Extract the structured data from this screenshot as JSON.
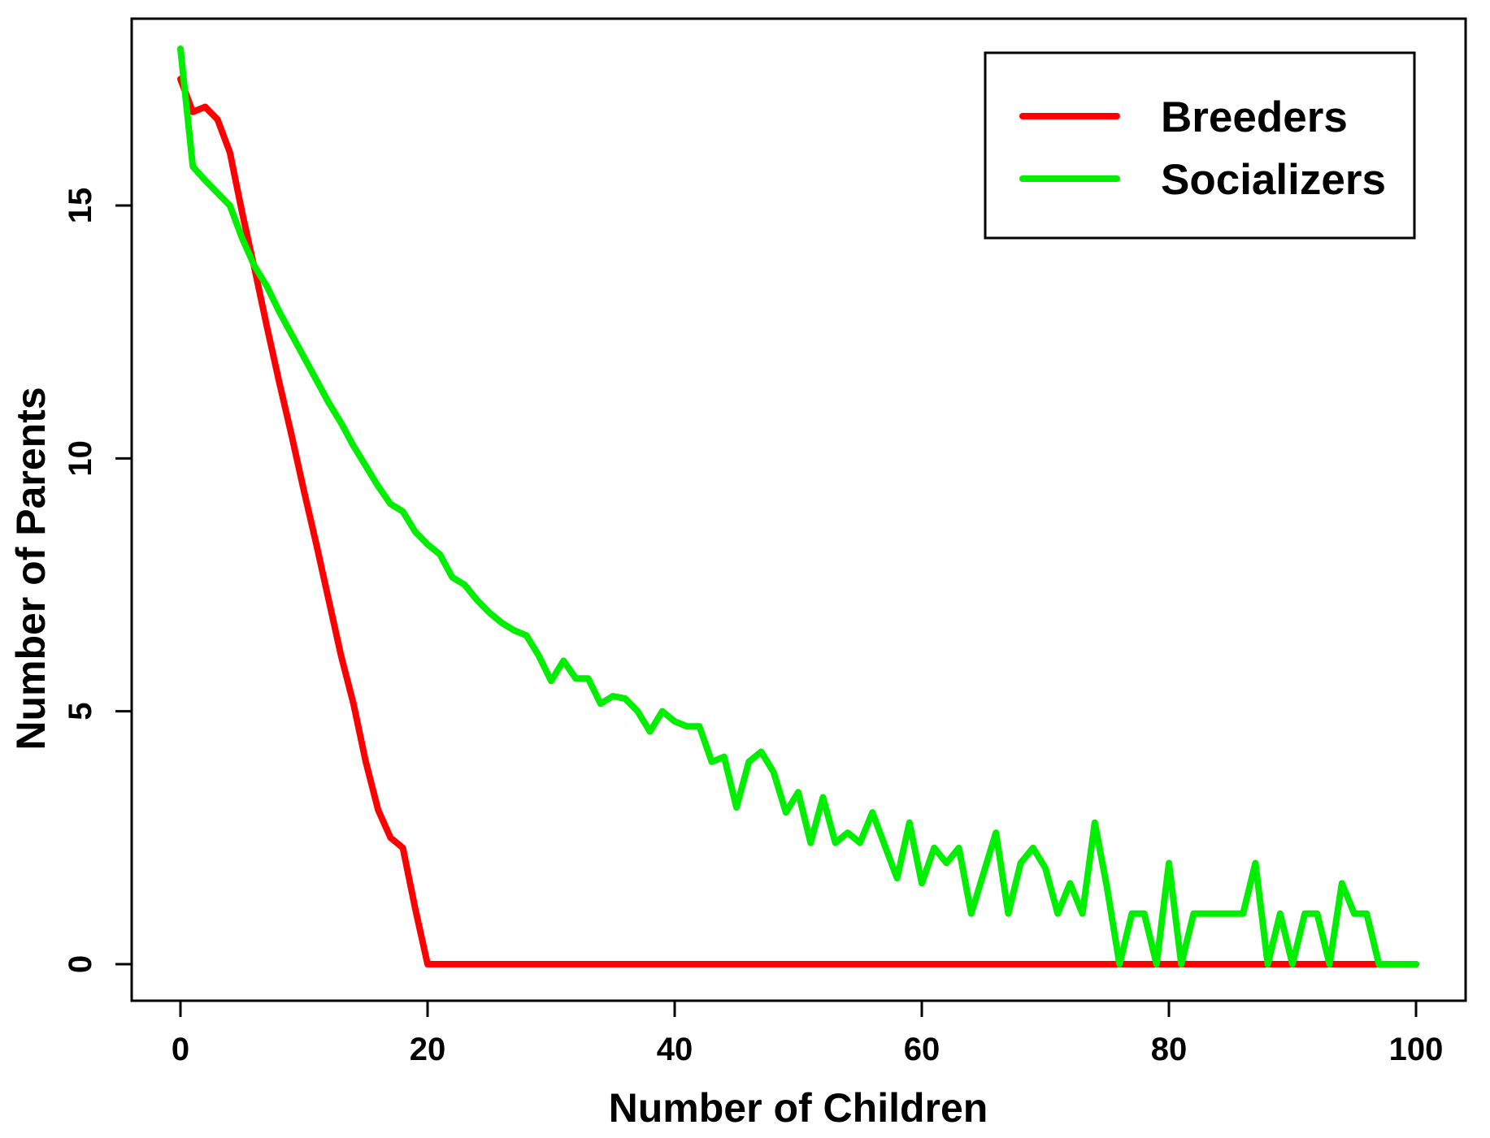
{
  "chart_data": {
    "type": "line",
    "title": "",
    "xlabel": "Number of Children",
    "ylabel": "Number of Parents",
    "x_ticks": [
      0,
      20,
      40,
      60,
      80,
      100
    ],
    "y_ticks": [
      0,
      5,
      10,
      15
    ],
    "xlim": [
      -4,
      104
    ],
    "ylim": [
      -0.75,
      18.7
    ],
    "grid": false,
    "legend": {
      "position": "top-right",
      "entries": [
        {
          "label": "Breeders",
          "color": "#ff0000"
        },
        {
          "label": "Socializers",
          "color": "#00ee00"
        }
      ]
    },
    "x": [
      0,
      1,
      2,
      3,
      4,
      5,
      6,
      7,
      8,
      9,
      10,
      11,
      12,
      13,
      14,
      15,
      16,
      17,
      18,
      19,
      20,
      21,
      22,
      23,
      24,
      25,
      26,
      27,
      28,
      29,
      30,
      31,
      32,
      33,
      34,
      35,
      36,
      37,
      38,
      39,
      40,
      41,
      42,
      43,
      44,
      45,
      46,
      47,
      48,
      49,
      50,
      51,
      52,
      53,
      54,
      55,
      56,
      57,
      58,
      59,
      60,
      61,
      62,
      63,
      64,
      65,
      66,
      67,
      68,
      69,
      70,
      71,
      72,
      73,
      74,
      75,
      76,
      77,
      78,
      79,
      80,
      81,
      82,
      83,
      84,
      85,
      86,
      87,
      88,
      89,
      90,
      91,
      92,
      93,
      94,
      95,
      96,
      97,
      98,
      99,
      100
    ],
    "series": [
      {
        "name": "Breeders",
        "color": "#ff0000",
        "values": [
          17.5,
          16.85,
          16.95,
          16.7,
          16.05,
          14.85,
          13.75,
          12.6,
          11.5,
          10.45,
          9.35,
          8.3,
          7.2,
          6.1,
          5.15,
          4.0,
          3.05,
          2.5,
          2.3,
          1.1,
          0,
          0,
          0,
          0,
          0,
          0,
          0,
          0,
          0,
          0,
          0,
          0,
          0,
          0,
          0,
          0,
          0,
          0,
          0,
          0,
          0,
          0,
          0,
          0,
          0,
          0,
          0,
          0,
          0,
          0,
          0,
          0,
          0,
          0,
          0,
          0,
          0,
          0,
          0,
          0,
          0,
          0,
          0,
          0,
          0,
          0,
          0,
          0,
          0,
          0,
          0,
          0,
          0,
          0,
          0,
          0,
          0,
          0,
          0,
          0,
          0,
          0,
          0,
          0,
          0,
          0,
          0,
          0,
          0,
          0,
          0,
          0,
          0,
          0,
          0,
          0,
          0,
          0,
          0,
          0,
          0
        ]
      },
      {
        "name": "Socializers",
        "color": "#00ee00",
        "values": [
          18.1,
          15.77,
          15.5,
          15.25,
          15.0,
          14.35,
          13.8,
          13.4,
          12.9,
          12.45,
          12.0,
          11.55,
          11.1,
          10.7,
          10.25,
          9.85,
          9.45,
          9.1,
          8.95,
          8.55,
          8.3,
          8.1,
          7.65,
          7.5,
          7.2,
          6.95,
          6.75,
          6.6,
          6.5,
          6.1,
          5.6,
          6.0,
          5.65,
          5.65,
          5.15,
          5.3,
          5.25,
          5.0,
          4.6,
          5.0,
          4.8,
          4.7,
          4.7,
          4.0,
          4.1,
          3.1,
          4.0,
          4.2,
          3.8,
          3.0,
          3.4,
          2.4,
          3.3,
          2.4,
          2.6,
          2.4,
          3.0,
          2.35,
          1.7,
          2.8,
          1.6,
          2.3,
          2.0,
          2.3,
          1.0,
          1.8,
          2.6,
          1.0,
          2.0,
          2.3,
          1.9,
          1.0,
          1.6,
          1.0,
          2.8,
          1.5,
          0,
          1.0,
          1.0,
          0,
          2.0,
          0,
          1.0,
          1.0,
          1.0,
          1.0,
          1.0,
          2.0,
          0,
          1.0,
          0,
          1.0,
          1.0,
          0,
          1.6,
          1.0,
          1.0,
          0,
          0,
          0,
          0
        ]
      }
    ]
  }
}
